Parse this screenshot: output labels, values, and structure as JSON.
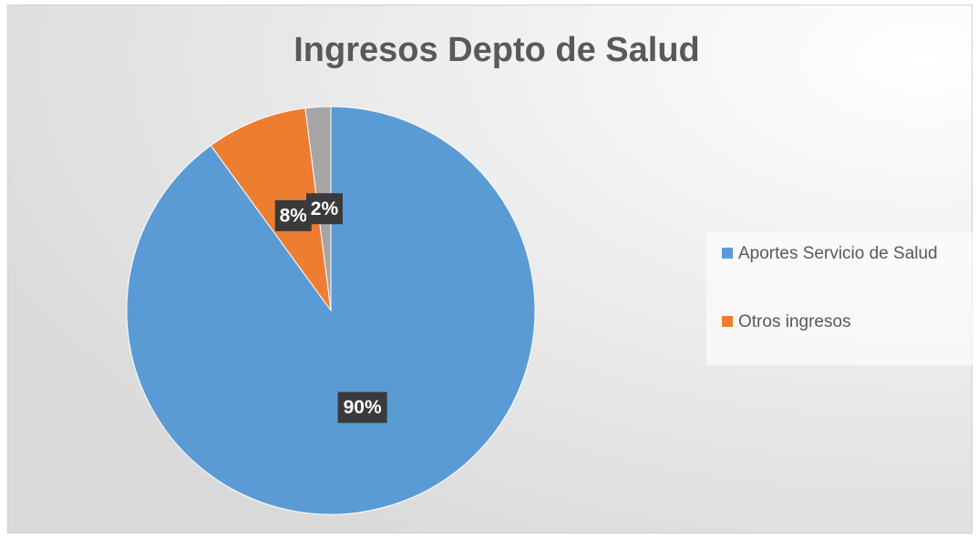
{
  "chart_data": {
    "type": "pie",
    "title": "Ingresos Depto de Salud",
    "categories": [
      "Aportes Servicio de Salud",
      "Otros ingresos",
      null
    ],
    "values": [
      90,
      8,
      2
    ],
    "value_labels": [
      "90%",
      "8%",
      "2%"
    ],
    "colors": [
      "#5b9bd5",
      "#ed7d31",
      "#a5a5a5"
    ],
    "legend": "right"
  }
}
